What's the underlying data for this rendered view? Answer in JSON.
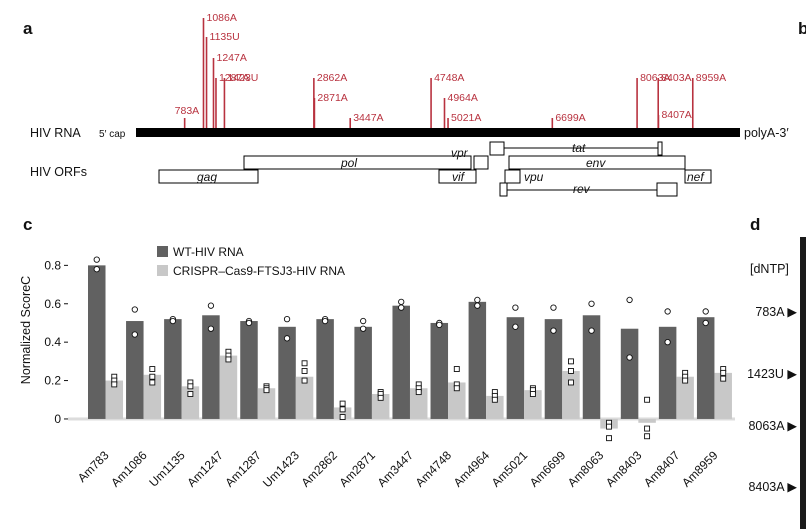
{
  "panels": {
    "a": "a",
    "b": "b",
    "c": "c",
    "d": "d"
  },
  "rna_map": {
    "row_label_rna": "HIV RNA",
    "row_label_orfs": "HIV ORFs",
    "five_prime": "5′ cap",
    "three_prime": "polyA-3′",
    "sites": [
      {
        "label": "783A",
        "pos": 783,
        "height": "short"
      },
      {
        "label": "1086A",
        "pos": 1086,
        "height": "tall"
      },
      {
        "label": "1135U",
        "pos": 1135,
        "height": "tall"
      },
      {
        "label": "1247A",
        "pos": 1247,
        "height": "mid"
      },
      {
        "label": "1287A",
        "pos": 1287,
        "height": "mid"
      },
      {
        "label": "1423U",
        "pos": 1423,
        "height": "mid"
      },
      {
        "label": "2862A",
        "pos": 2862,
        "height": "mid"
      },
      {
        "label": "2871A",
        "pos": 2871,
        "height": "mid"
      },
      {
        "label": "3447A",
        "pos": 3447,
        "height": "short"
      },
      {
        "label": "4748A",
        "pos": 4748,
        "height": "mid"
      },
      {
        "label": "4964A",
        "pos": 4964,
        "height": "mid"
      },
      {
        "label": "5021A",
        "pos": 5021,
        "height": "short"
      },
      {
        "label": "6699A",
        "pos": 6699,
        "height": "short"
      },
      {
        "label": "8063A",
        "pos": 8063,
        "height": "mid"
      },
      {
        "label": "8403A",
        "pos": 8403,
        "height": "mid"
      },
      {
        "label": "8407A",
        "pos": 8407,
        "height": "short"
      },
      {
        "label": "8959A",
        "pos": 8959,
        "height": "mid"
      }
    ],
    "orfs": [
      {
        "name": "gag"
      },
      {
        "name": "pol"
      },
      {
        "name": "vif"
      },
      {
        "name": "vpr"
      },
      {
        "name": "tat"
      },
      {
        "name": "env"
      },
      {
        "name": "vpu"
      },
      {
        "name": "rev"
      },
      {
        "name": "nef"
      }
    ]
  },
  "chart_data": {
    "type": "bar",
    "title": "",
    "xlabel": "",
    "ylabel": "Normalized ScoreC",
    "ylim": [
      -0.12,
      0.88
    ],
    "yticks": [
      "0.8",
      "0.6",
      "0.4",
      "0.2",
      "0"
    ],
    "ytick_values": [
      0.8,
      0.6,
      0.4,
      0.2,
      0
    ],
    "legend_placement": "top",
    "categories": [
      "Am783",
      "Am1086",
      "Um1135",
      "Am1247",
      "Am1287",
      "Um1423",
      "Am2862",
      "Am2871",
      "Am3447",
      "Am4748",
      "Am4964",
      "Am5021",
      "Am6699",
      "Am8063",
      "Am8403",
      "Am8407",
      "Am8959"
    ],
    "series": [
      {
        "name": "WT-HIV RNA",
        "color": "#616161",
        "values": [
          0.8,
          0.51,
          0.52,
          0.54,
          0.51,
          0.48,
          0.52,
          0.48,
          0.59,
          0.5,
          0.61,
          0.53,
          0.52,
          0.54,
          0.47,
          0.48,
          0.53
        ],
        "points": [
          [
            0.83,
            0.78
          ],
          [
            0.57,
            0.44
          ],
          [
            0.52,
            0.51
          ],
          [
            0.59,
            0.47
          ],
          [
            0.51,
            0.5
          ],
          [
            0.52,
            0.42
          ],
          [
            0.52,
            0.51
          ],
          [
            0.51,
            0.47
          ],
          [
            0.61,
            0.58
          ],
          [
            0.5,
            0.49
          ],
          [
            0.62,
            0.59
          ],
          [
            0.58,
            0.48
          ],
          [
            0.58,
            0.46
          ],
          [
            0.6,
            0.46
          ],
          [
            0.62,
            0.32
          ],
          [
            0.56,
            0.4
          ],
          [
            0.56,
            0.5
          ]
        ]
      },
      {
        "name": "CRISPR–Cas9-FTSJ3-HIV RNA",
        "color": "#c8c8c8",
        "values": [
          0.2,
          0.23,
          0.17,
          0.33,
          0.16,
          0.22,
          0.06,
          0.13,
          0.16,
          0.19,
          0.12,
          0.15,
          0.25,
          -0.05,
          -0.02,
          0.22,
          0.24
        ],
        "points": [
          [
            0.22,
            0.2,
            0.18
          ],
          [
            0.26,
            0.22,
            0.19
          ],
          [
            0.19,
            0.17,
            0.13
          ],
          [
            0.35,
            0.33,
            0.31
          ],
          [
            0.17,
            0.16,
            0.15
          ],
          [
            0.29,
            0.25,
            0.2
          ],
          [
            0.08,
            0.05,
            0.01
          ],
          [
            0.14,
            0.13,
            0.11
          ],
          [
            0.18,
            0.16,
            0.14
          ],
          [
            0.26,
            0.18,
            0.16
          ],
          [
            0.14,
            0.12,
            0.1
          ],
          [
            0.16,
            0.15,
            0.13
          ],
          [
            0.3,
            0.25,
            0.19
          ],
          [
            -0.02,
            -0.04,
            -0.1
          ],
          [
            0.1,
            -0.05,
            -0.09
          ],
          [
            0.24,
            0.22,
            0.2
          ],
          [
            0.26,
            0.24,
            0.21
          ]
        ]
      }
    ]
  },
  "panel_d": {
    "header": "[dNTP]",
    "rows": [
      "783A ▶",
      "1423U ▶",
      "8063A ▶",
      "8403A ▶"
    ]
  }
}
